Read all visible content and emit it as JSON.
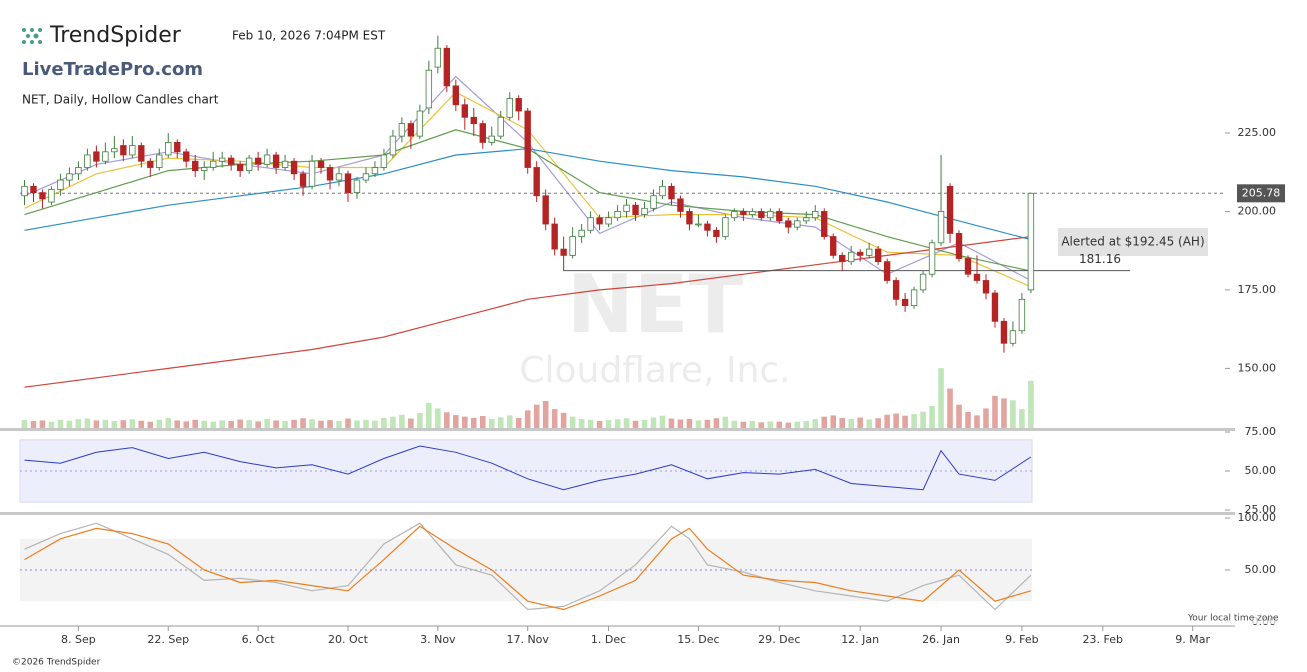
{
  "header": {
    "brand": "TrendSpider",
    "timestamp": "Feb 10, 2026 7:04PM EST",
    "sub_brand": "LiveTradePro.com"
  },
  "footer": {
    "copyright": "©2026 TrendSpider",
    "timezone": "Your local time zone"
  },
  "chart_data": {
    "type": "candlestick",
    "title": "NET, Daily, Hollow Candles chart",
    "watermark": [
      "NET",
      "Cloudflare, Inc."
    ],
    "up_color": "#3f7f3f",
    "down_color": "#b52424",
    "xlim": [
      -0.5,
      133.6
    ],
    "xticks": [
      {
        "value": 6,
        "label": "8. Sep"
      },
      {
        "value": 16,
        "label": "22. Sep"
      },
      {
        "value": 26,
        "label": "6. Oct"
      },
      {
        "value": 36,
        "label": "20. Oct"
      },
      {
        "value": 46,
        "label": "3. Nov"
      },
      {
        "value": 56,
        "label": "17. Nov"
      },
      {
        "value": 65,
        "label": "1. Dec"
      },
      {
        "value": 75,
        "label": "15. Dec"
      },
      {
        "value": 84,
        "label": "29. Dec"
      },
      {
        "value": 93,
        "label": "12. Jan"
      },
      {
        "value": 102,
        "label": "26. Jan"
      },
      {
        "value": 111,
        "label": "9. Feb"
      },
      {
        "value": 120,
        "label": "23. Feb"
      },
      {
        "value": 130,
        "label": "9. Mar"
      }
    ],
    "ylim": [
      131,
      261
    ],
    "yticks": [
      {
        "value": 150,
        "label": "150.00"
      },
      {
        "value": 175,
        "label": "175.00"
      },
      {
        "value": 200,
        "label": "200.00"
      },
      {
        "value": 225,
        "label": "225.00"
      }
    ],
    "last_price": 205.78,
    "level_line": 181.16,
    "alert": "Alerted at $192.45 (AH)",
    "candles": [
      [
        205,
        210,
        202,
        208
      ],
      [
        208,
        209,
        203,
        206
      ],
      [
        206,
        207,
        201,
        204
      ],
      [
        203,
        208,
        202,
        207
      ],
      [
        207,
        212,
        205,
        210
      ],
      [
        210,
        214,
        208,
        212
      ],
      [
        212,
        216,
        210,
        214
      ],
      [
        214,
        220,
        213,
        218
      ],
      [
        219,
        221,
        214,
        216
      ],
      [
        216,
        222,
        215,
        219
      ],
      [
        219,
        224,
        217,
        220
      ],
      [
        221,
        223,
        216,
        218
      ],
      [
        218,
        224,
        217,
        221
      ],
      [
        221,
        222,
        214,
        216
      ],
      [
        216,
        217,
        211,
        214
      ],
      [
        214,
        220,
        213,
        218
      ],
      [
        218,
        225,
        217,
        222
      ],
      [
        222,
        223,
        217,
        219
      ],
      [
        219,
        220,
        214,
        216
      ],
      [
        216,
        218,
        211,
        213
      ],
      [
        213,
        216,
        210,
        214
      ],
      [
        214,
        219,
        213,
        216
      ],
      [
        216,
        219,
        214,
        217
      ],
      [
        217,
        218,
        213,
        215
      ],
      [
        215,
        216,
        211,
        213
      ],
      [
        213,
        218,
        212,
        217
      ],
      [
        217,
        219,
        213,
        215
      ],
      [
        215,
        220,
        214,
        218
      ],
      [
        218,
        219,
        212,
        214
      ],
      [
        214,
        218,
        213,
        216
      ],
      [
        216,
        217,
        210,
        212
      ],
      [
        212,
        213,
        205,
        208
      ],
      [
        208,
        218,
        207,
        216
      ],
      [
        216,
        217,
        212,
        214
      ],
      [
        214,
        215,
        207,
        210
      ],
      [
        210,
        214,
        208,
        212
      ],
      [
        212,
        213,
        203,
        206
      ],
      [
        206,
        211,
        204,
        210
      ],
      [
        210,
        214,
        209,
        212
      ],
      [
        212,
        216,
        211,
        214
      ],
      [
        214,
        220,
        213,
        218
      ],
      [
        218,
        226,
        217,
        224
      ],
      [
        224,
        230,
        222,
        228
      ],
      [
        228,
        229,
        220,
        224
      ],
      [
        224,
        234,
        223,
        232
      ],
      [
        233,
        248,
        231,
        245
      ],
      [
        246,
        256,
        244,
        252
      ],
      [
        252,
        253,
        238,
        240
      ],
      [
        240,
        242,
        232,
        234
      ],
      [
        234,
        236,
        226,
        230
      ],
      [
        230,
        233,
        224,
        228
      ],
      [
        228,
        229,
        220,
        222
      ],
      [
        222,
        227,
        221,
        224
      ],
      [
        224,
        232,
        223,
        230
      ],
      [
        230,
        238,
        229,
        236
      ],
      [
        236,
        237,
        229,
        232
      ],
      [
        232,
        233,
        212,
        214
      ],
      [
        214,
        216,
        203,
        205
      ],
      [
        205,
        207,
        194,
        196
      ],
      [
        196,
        198,
        186,
        188
      ],
      [
        188,
        192,
        181,
        186
      ],
      [
        186,
        195,
        185,
        192
      ],
      [
        192,
        196,
        190,
        194
      ],
      [
        194,
        200,
        193,
        198
      ],
      [
        198,
        199,
        194,
        196
      ],
      [
        196,
        200,
        195,
        198
      ],
      [
        198,
        202,
        197,
        200
      ],
      [
        200,
        204,
        198,
        202
      ],
      [
        202,
        203,
        197,
        199
      ],
      [
        199,
        203,
        198,
        201
      ],
      [
        201,
        207,
        200,
        205
      ],
      [
        205,
        210,
        204,
        208
      ],
      [
        208,
        209,
        202,
        204
      ],
      [
        204,
        205,
        198,
        200
      ],
      [
        200,
        201,
        194,
        196
      ],
      [
        196,
        199,
        195,
        196
      ],
      [
        196,
        197,
        192,
        194
      ],
      [
        194,
        195,
        190,
        192
      ],
      [
        192,
        199,
        191,
        198
      ],
      [
        198,
        201,
        197,
        200
      ],
      [
        200,
        201,
        197,
        199
      ],
      [
        199,
        201,
        198,
        200
      ],
      [
        200,
        201,
        197,
        198
      ],
      [
        198,
        201,
        197,
        200
      ],
      [
        200,
        201,
        196,
        197
      ],
      [
        197,
        198,
        193,
        195
      ],
      [
        195,
        198,
        194,
        197
      ],
      [
        197,
        200,
        196,
        198
      ],
      [
        198,
        202,
        197,
        200
      ],
      [
        200,
        201,
        191,
        192
      ],
      [
        192,
        193,
        185,
        186
      ],
      [
        186,
        187,
        181,
        184
      ],
      [
        184,
        189,
        183,
        187
      ],
      [
        187,
        188,
        184,
        186
      ],
      [
        186,
        190,
        185,
        188
      ],
      [
        188,
        189,
        183,
        184
      ],
      [
        184,
        185,
        177,
        178
      ],
      [
        178,
        179,
        170,
        172
      ],
      [
        172,
        174,
        168,
        170
      ],
      [
        170,
        176,
        169,
        175
      ],
      [
        175,
        181,
        174,
        180
      ],
      [
        180,
        191,
        179,
        190
      ],
      [
        190,
        218,
        189,
        200
      ],
      [
        208,
        209,
        190,
        193
      ],
      [
        193,
        194,
        184,
        185
      ],
      [
        185,
        186,
        179,
        180
      ],
      [
        180,
        186,
        177,
        178
      ],
      [
        178,
        180,
        172,
        174
      ],
      [
        174,
        175,
        163,
        165
      ],
      [
        165,
        166,
        155,
        158
      ],
      [
        158,
        165,
        157,
        162
      ],
      [
        162,
        174,
        161,
        172
      ],
      [
        175,
        206,
        174,
        205.78
      ]
    ],
    "volume_ylim": [
      0,
      20
    ],
    "volume_up_color": "#bfe5b8",
    "volume_down_color": "#e2a49e",
    "volume": [
      2.5,
      2.2,
      2.4,
      2.0,
      2.6,
      2.3,
      2.8,
      3.0,
      2.4,
      2.6,
      2.2,
      2.5,
      2.8,
      2.3,
      2.0,
      2.6,
      3.2,
      2.4,
      2.1,
      2.6,
      2.3,
      2.0,
      2.4,
      2.2,
      2.7,
      2.5,
      2.1,
      2.9,
      2.4,
      2.2,
      2.6,
      3.1,
      2.8,
      2.3,
      2.5,
      2.2,
      3.0,
      2.4,
      2.6,
      2.3,
      3.2,
      3.6,
      4.2,
      3.0,
      4.8,
      8.0,
      6.2,
      5.0,
      4.1,
      3.6,
      3.2,
      3.8,
      2.9,
      3.4,
      4.0,
      3.2,
      5.6,
      7.4,
      8.6,
      6.0,
      4.8,
      3.6,
      2.9,
      2.6,
      2.2,
      2.5,
      2.8,
      3.1,
      2.3,
      2.6,
      3.3,
      3.9,
      3.0,
      2.7,
      2.9,
      2.4,
      2.6,
      3.1,
      3.6,
      2.3,
      2.0,
      2.2,
      1.8,
      2.1,
      2.0,
      1.7,
      2.0,
      2.2,
      2.8,
      3.6,
      4.0,
      3.2,
      2.9,
      3.3,
      2.7,
      3.1,
      4.2,
      4.6,
      3.9,
      4.4,
      5.2,
      7.0,
      19.0,
      12.5,
      7.4,
      5.1,
      4.0,
      6.2,
      10.2,
      9.4,
      8.8,
      6.0,
      15.0
    ],
    "moving_averages": [
      {
        "color": "#a79bd8",
        "x": [
          0,
          8,
          16,
          24,
          32,
          40,
          48,
          56,
          64,
          72,
          80,
          88,
          96,
          104,
          112
        ],
        "values": [
          205,
          215,
          219,
          215,
          212,
          218,
          243,
          222,
          193,
          203,
          198,
          195,
          180,
          190,
          178
        ]
      },
      {
        "color": "#e8c33a",
        "x": [
          0,
          8,
          16,
          24,
          32,
          40,
          48,
          56,
          64,
          72,
          80,
          88,
          96,
          104,
          112
        ],
        "values": [
          201,
          212,
          217,
          216,
          214,
          214,
          238,
          226,
          198,
          199,
          199,
          198,
          187,
          186,
          176
        ]
      },
      {
        "color": "#5e9e4c",
        "x": [
          0,
          8,
          16,
          24,
          32,
          40,
          48,
          56,
          64,
          72,
          80,
          88,
          96,
          104,
          112
        ],
        "values": [
          199,
          206,
          213,
          215,
          216,
          218,
          226,
          220,
          206,
          202,
          200,
          199,
          192,
          186,
          181
        ]
      },
      {
        "color": "#2b8fc4",
        "x": [
          0,
          8,
          16,
          24,
          32,
          40,
          48,
          56,
          64,
          72,
          80,
          88,
          96,
          104,
          112
        ],
        "values": [
          194,
          198,
          202,
          205,
          208,
          212,
          218,
          220,
          216,
          213,
          211,
          208,
          203,
          197,
          191
        ]
      },
      {
        "color": "#d0453a",
        "x": [
          0,
          8,
          16,
          24,
          32,
          40,
          48,
          56,
          64,
          72,
          80,
          88,
          96,
          104,
          112
        ],
        "values": [
          144,
          147,
          150,
          153,
          156,
          160,
          166,
          172,
          175,
          177,
          180,
          183,
          186,
          189,
          192
        ]
      }
    ],
    "rsi": {
      "ylim": [
        25,
        75
      ],
      "yticks": [
        {
          "value": 25,
          "label": "25.00"
        },
        {
          "value": 50,
          "label": "50.00"
        },
        {
          "value": 75,
          "label": "75.00"
        }
      ],
      "band": [
        30,
        70
      ],
      "midline": 50,
      "color": "#2d3ac4",
      "x": [
        0,
        4,
        8,
        12,
        16,
        20,
        24,
        28,
        32,
        36,
        40,
        44,
        48,
        52,
        56,
        60,
        64,
        68,
        72,
        76,
        80,
        84,
        88,
        92,
        96,
        100,
        102,
        104,
        108,
        112
      ],
      "values": [
        57,
        55,
        62,
        65,
        58,
        62,
        56,
        52,
        54,
        48,
        58,
        66,
        62,
        55,
        45,
        38,
        44,
        48,
        54,
        45,
        49,
        48,
        51,
        42,
        40,
        38,
        63,
        48,
        44,
        59
      ]
    },
    "stochastic": {
      "ylim": [
        0,
        100
      ],
      "yticks": [
        {
          "value": 0,
          "label": "0.00"
        },
        {
          "value": 50,
          "label": "50.00"
        },
        {
          "value": 100,
          "label": "100.00"
        }
      ],
      "band": [
        20,
        80
      ],
      "midline": 50,
      "series": [
        {
          "color": "#b5b5b5",
          "x": [
            0,
            4,
            8,
            12,
            16,
            20,
            24,
            28,
            32,
            36,
            40,
            44,
            48,
            52,
            56,
            60,
            64,
            68,
            72,
            74,
            76,
            80,
            84,
            88,
            92,
            96,
            100,
            104,
            108,
            112
          ],
          "values": [
            70,
            85,
            95,
            80,
            65,
            40,
            42,
            38,
            30,
            35,
            75,
            95,
            55,
            45,
            12,
            15,
            30,
            55,
            92,
            80,
            55,
            48,
            38,
            30,
            25,
            20,
            35,
            45,
            12,
            45
          ]
        },
        {
          "color": "#ef7d1c",
          "x": [
            0,
            4,
            8,
            12,
            16,
            20,
            24,
            28,
            32,
            36,
            40,
            44,
            48,
            52,
            56,
            60,
            64,
            68,
            72,
            74,
            76,
            80,
            84,
            88,
            92,
            96,
            100,
            104,
            108,
            112
          ],
          "values": [
            60,
            80,
            90,
            85,
            75,
            50,
            38,
            40,
            35,
            30,
            60,
            92,
            70,
            50,
            20,
            12,
            25,
            40,
            80,
            90,
            70,
            45,
            40,
            38,
            30,
            25,
            20,
            50,
            20,
            30
          ]
        }
      ]
    }
  }
}
